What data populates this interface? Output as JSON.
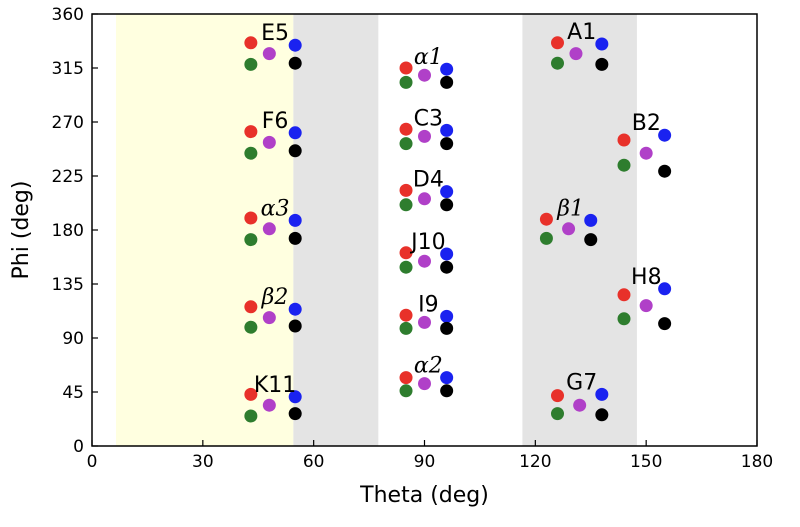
{
  "chart_data": {
    "type": "scatter",
    "xlabel": "Theta (deg)",
    "ylabel": "Phi (deg)",
    "xlim": [
      0,
      180
    ],
    "ylim": [
      0,
      360
    ],
    "xticks": [
      "0",
      "30",
      "60",
      "90",
      "120",
      "150",
      "180"
    ],
    "yticks": [
      "0",
      "45",
      "90",
      "135",
      "180",
      "225",
      "270",
      "315",
      "360"
    ],
    "grid": false,
    "regions": [
      {
        "x0": 6.5,
        "x1": 54.5,
        "color": "#ffffe0"
      },
      {
        "x0": 54.5,
        "x1": 77.5,
        "color": "#e4e4e4"
      },
      {
        "x0": 116.5,
        "x1": 147.5,
        "color": "#e4e4e4"
      }
    ],
    "dot_colors": [
      "#e8312a",
      "#2e7d2e",
      "#b040c8",
      "#1a22f0",
      "#000000"
    ],
    "groups": [
      {
        "label": "E5",
        "points": [
          [
            43,
            336
          ],
          [
            43,
            318
          ],
          [
            48,
            327
          ],
          [
            55,
            334
          ],
          [
            55,
            319
          ]
        ]
      },
      {
        "label": "F6",
        "points": [
          [
            43,
            262
          ],
          [
            43,
            244
          ],
          [
            48,
            253
          ],
          [
            55,
            261
          ],
          [
            55,
            246
          ]
        ]
      },
      {
        "label": "α3",
        "points": [
          [
            43,
            190
          ],
          [
            43,
            172
          ],
          [
            48,
            181
          ],
          [
            55,
            188
          ],
          [
            55,
            173
          ]
        ]
      },
      {
        "label": "β2",
        "points": [
          [
            43,
            116
          ],
          [
            43,
            99
          ],
          [
            48,
            107
          ],
          [
            55,
            114
          ],
          [
            55,
            100
          ]
        ]
      },
      {
        "label": "K11",
        "points": [
          [
            43,
            43
          ],
          [
            43,
            25
          ],
          [
            48,
            34
          ],
          [
            55,
            41
          ],
          [
            55,
            27
          ]
        ]
      },
      {
        "label": "α1",
        "points": [
          [
            85,
            315
          ],
          [
            85,
            303
          ],
          [
            90,
            309
          ],
          [
            96,
            314
          ],
          [
            96,
            303
          ]
        ]
      },
      {
        "label": "C3",
        "points": [
          [
            85,
            264
          ],
          [
            85,
            252
          ],
          [
            90,
            258
          ],
          [
            96,
            263
          ],
          [
            96,
            252
          ]
        ]
      },
      {
        "label": "D4",
        "points": [
          [
            85,
            213
          ],
          [
            85,
            201
          ],
          [
            90,
            206
          ],
          [
            96,
            212
          ],
          [
            96,
            201
          ]
        ]
      },
      {
        "label": "J10",
        "points": [
          [
            85,
            161
          ],
          [
            85,
            149
          ],
          [
            90,
            154
          ],
          [
            96,
            160
          ],
          [
            96,
            149
          ]
        ]
      },
      {
        "label": "I9",
        "points": [
          [
            85,
            109
          ],
          [
            85,
            98
          ],
          [
            90,
            103
          ],
          [
            96,
            108
          ],
          [
            96,
            98
          ]
        ]
      },
      {
        "label": "α2",
        "points": [
          [
            85,
            57
          ],
          [
            85,
            46
          ],
          [
            90,
            52
          ],
          [
            96,
            57
          ],
          [
            96,
            46
          ]
        ]
      },
      {
        "label": "A1",
        "points": [
          [
            126,
            336
          ],
          [
            126,
            319
          ],
          [
            131,
            327
          ],
          [
            138,
            335
          ],
          [
            138,
            318
          ]
        ]
      },
      {
        "label": "β1",
        "points": [
          [
            123,
            189
          ],
          [
            123,
            173
          ],
          [
            129,
            181
          ],
          [
            135,
            188
          ],
          [
            135,
            172
          ]
        ]
      },
      {
        "label": "G7",
        "points": [
          [
            126,
            42
          ],
          [
            126,
            27
          ],
          [
            132,
            34
          ],
          [
            138,
            43
          ],
          [
            138,
            26
          ]
        ]
      },
      {
        "label": "B2",
        "points": [
          [
            144,
            255
          ],
          [
            144,
            234
          ],
          [
            150,
            244
          ],
          [
            155,
            259
          ],
          [
            155,
            229
          ]
        ]
      },
      {
        "label": "H8",
        "points": [
          [
            144,
            126
          ],
          [
            144,
            106
          ],
          [
            150,
            117
          ],
          [
            155,
            131
          ],
          [
            155,
            102
          ]
        ]
      }
    ]
  }
}
